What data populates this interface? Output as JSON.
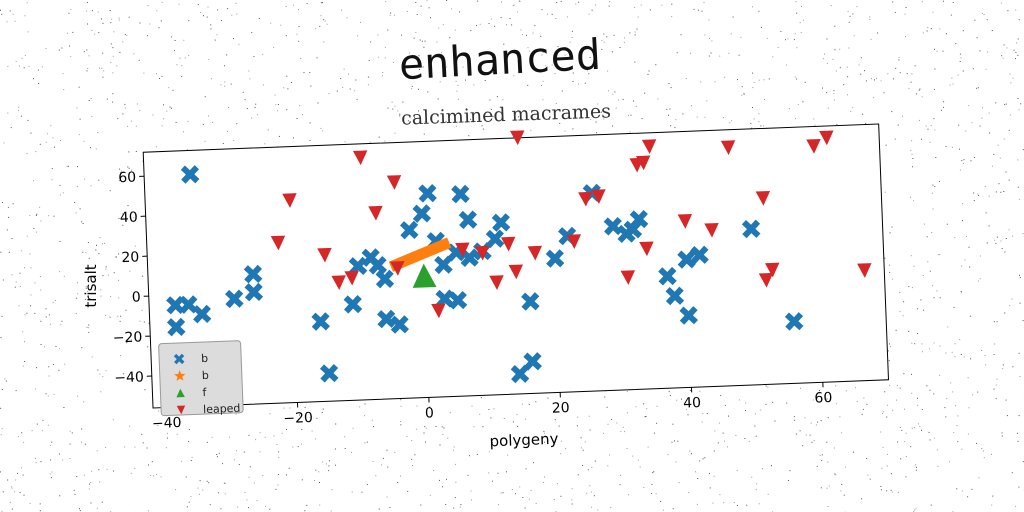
{
  "chart_data": {
    "type": "scatter",
    "title": "enhanced",
    "subtitle": "calcimined macrames",
    "xlabel": "polygeny",
    "ylabel": "trisalt",
    "xlim": [
      -42,
      70
    ],
    "ylim": [
      -56,
      72
    ],
    "xticks": [
      -40,
      -20,
      0,
      20,
      40,
      60
    ],
    "yticks": [
      -40,
      -20,
      0,
      20,
      40,
      60
    ],
    "xtick_labels": [
      "−40",
      "−20",
      "0",
      "20",
      "40",
      "60"
    ],
    "ytick_labels": [
      "−40",
      "−20",
      "0",
      "20",
      "40",
      "60"
    ],
    "grid": false,
    "legend_position": "lower-left",
    "series": [
      {
        "name": "b",
        "marker": "X",
        "color": "#1f77b4",
        "points": [
          [
            -35,
            60
          ],
          [
            -36,
            -5
          ],
          [
            -38,
            -5
          ],
          [
            -34,
            -10
          ],
          [
            -38,
            -16
          ],
          [
            -29,
            -3
          ],
          [
            -26,
            9
          ],
          [
            -26,
            0
          ],
          [
            -16,
            -16
          ],
          [
            -15,
            -42
          ],
          [
            -11,
            -8
          ],
          [
            -10,
            11
          ],
          [
            -8,
            15
          ],
          [
            -7,
            11
          ],
          [
            -6,
            4
          ],
          [
            -6,
            -16
          ],
          [
            -4,
            -19
          ],
          [
            -2,
            28
          ],
          [
            0,
            36
          ],
          [
            1,
            46
          ],
          [
            2,
            22
          ],
          [
            3,
            10
          ],
          [
            3,
            -7
          ],
          [
            5,
            -8
          ],
          [
            5,
            16
          ],
          [
            6,
            45
          ],
          [
            7,
            32
          ],
          [
            7,
            13
          ],
          [
            9,
            16
          ],
          [
            11,
            22
          ],
          [
            12,
            30
          ],
          [
            14,
            -46
          ],
          [
            16,
            -40
          ],
          [
            16,
            -10
          ],
          [
            20,
            11
          ],
          [
            22,
            22
          ],
          [
            26,
            43
          ],
          [
            29,
            26
          ],
          [
            31,
            22
          ],
          [
            32,
            24
          ],
          [
            33,
            29
          ],
          [
            37,
            0
          ],
          [
            38,
            -10
          ],
          [
            40,
            -20
          ],
          [
            40,
            8
          ],
          [
            42,
            10
          ],
          [
            50,
            22
          ],
          [
            56,
            -25
          ]
        ]
      },
      {
        "name": "b",
        "marker": "line",
        "color": "#ff7f0e",
        "points": [
          [
            -5,
            10
          ],
          [
            4,
            21
          ]
        ]
      },
      {
        "name": "f",
        "marker": "^",
        "color": "#2ca02c",
        "points": [
          [
            0,
            5
          ]
        ]
      },
      {
        "name": "leaped",
        "marker": "v",
        "color": "#d62728",
        "points": [
          [
            -22,
            24
          ],
          [
            -20,
            45
          ],
          [
            -15,
            17
          ],
          [
            -13,
            3
          ],
          [
            -11,
            5
          ],
          [
            -9,
            65
          ],
          [
            -7,
            37
          ],
          [
            -4,
            52
          ],
          [
            -4,
            9
          ],
          [
            2,
            -13
          ],
          [
            6,
            17
          ],
          [
            9,
            15
          ],
          [
            11,
            0
          ],
          [
            13,
            19
          ],
          [
            14,
            5
          ],
          [
            15,
            72
          ],
          [
            17,
            14
          ],
          [
            23,
            19
          ],
          [
            25,
            40
          ],
          [
            27,
            41
          ],
          [
            31,
            0
          ],
          [
            33,
            56
          ],
          [
            34,
            57
          ],
          [
            34,
            14
          ],
          [
            35,
            65
          ],
          [
            40,
            27
          ],
          [
            44,
            22
          ],
          [
            47,
            63
          ],
          [
            52,
            -4
          ],
          [
            52,
            37
          ],
          [
            53,
            1
          ],
          [
            60,
            62
          ],
          [
            62,
            66
          ],
          [
            67,
            -1
          ]
        ]
      }
    ]
  },
  "colors": {
    "blue": "#1f77b4",
    "orange": "#ff7f0e",
    "green": "#2ca02c",
    "red": "#d62728",
    "legend_bg": "#dcdcdc"
  }
}
